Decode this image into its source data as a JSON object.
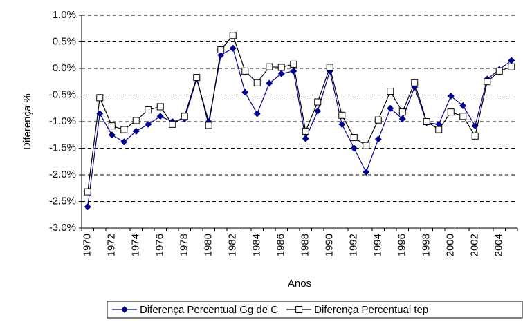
{
  "chart_data": {
    "type": "line",
    "y_label": "Diferença %",
    "x_label": "Anos",
    "categories": [
      "1970",
      null,
      "1972",
      null,
      "1974",
      null,
      "1976",
      null,
      "1978",
      null,
      "1980",
      null,
      "1982",
      null,
      "1984",
      null,
      "1986",
      null,
      "1988",
      null,
      "1990",
      null,
      "1992",
      null,
      "1994",
      null,
      "1996",
      null,
      "1998",
      null,
      "2000",
      null,
      "2002",
      null,
      "2004",
      null
    ],
    "series": [
      {
        "name": "Diferença Percentual Gg de C",
        "color": "#00008b",
        "marker": "diamond",
        "values": [
          -2.6,
          -0.85,
          -1.25,
          -1.38,
          -1.18,
          -1.05,
          -0.9,
          -1.0,
          -0.95,
          -0.2,
          -1.0,
          0.25,
          0.38,
          -0.45,
          -0.85,
          -0.28,
          -0.1,
          -0.05,
          -1.32,
          -0.8,
          -0.05,
          -1.05,
          -1.5,
          -1.95,
          -1.33,
          -0.75,
          -0.95,
          -0.35,
          -1.02,
          -1.05,
          -0.52,
          -0.7,
          -1.08,
          -0.2,
          -0.02,
          0.15
        ]
      },
      {
        "name": "Diferença Percentual tep",
        "color": "#000000",
        "marker": "square",
        "values": [
          -2.32,
          -0.55,
          -1.08,
          -1.15,
          -0.98,
          -0.78,
          -0.72,
          -1.05,
          -0.9,
          -0.17,
          -1.07,
          0.35,
          0.62,
          -0.05,
          -0.27,
          0.03,
          0.02,
          0.08,
          -1.18,
          -0.63,
          0.02,
          -0.88,
          -1.3,
          -1.45,
          -0.97,
          -0.43,
          -0.82,
          -0.27,
          -1.0,
          -1.15,
          -0.82,
          -0.9,
          -1.27,
          -0.25,
          -0.05,
          0.03
        ]
      }
    ],
    "ylim": [
      -3.0,
      1.0
    ],
    "yticks": [
      {
        "value": -3.0,
        "label": "-3.0%"
      },
      {
        "value": -2.5,
        "label": "-2.5%"
      },
      {
        "value": -2.0,
        "label": "-2.0%"
      },
      {
        "value": -1.5,
        "label": "-1.5%"
      },
      {
        "value": -1.0,
        "label": "-1.0%"
      },
      {
        "value": -0.5,
        "label": "-0.5%"
      },
      {
        "value": 0.0,
        "label": "0.0%"
      },
      {
        "value": 0.5,
        "label": "0.5%"
      },
      {
        "value": 1.0,
        "label": "1.0%"
      }
    ],
    "grid": true,
    "legend": "bottom"
  }
}
